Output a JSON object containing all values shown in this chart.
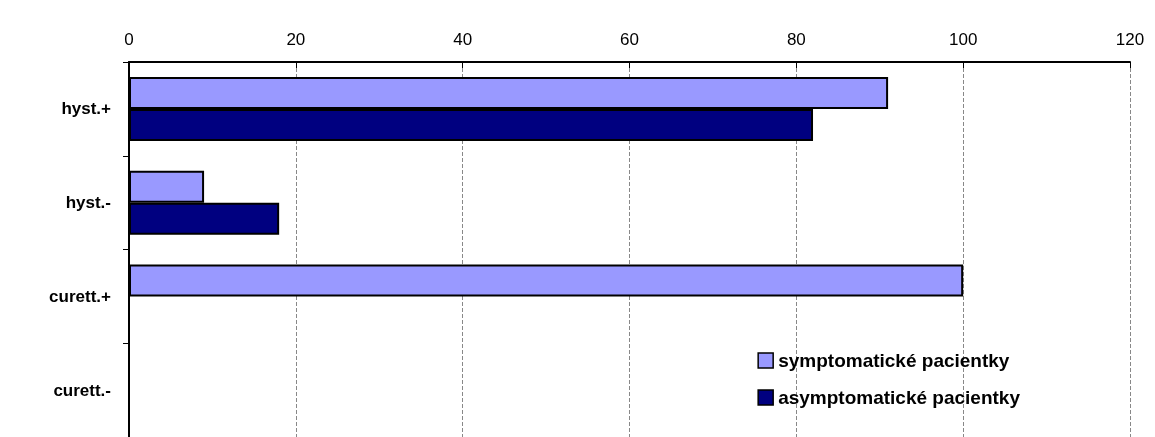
{
  "chart_data": {
    "type": "bar",
    "orientation": "horizontal",
    "categories": [
      "hyst.+",
      "hyst.-",
      "curett.+",
      "curett.-"
    ],
    "series": [
      {
        "name": "symptomatické pacientky",
        "color": "#9999ff",
        "values": [
          91,
          9,
          100,
          0
        ]
      },
      {
        "name": "asymptomatické pacientky",
        "color": "#000080",
        "values": [
          82,
          18,
          0,
          0
        ]
      }
    ],
    "xlim": [
      0,
      120
    ],
    "xticks": [
      0,
      20,
      40,
      60,
      80,
      100,
      120
    ],
    "grid": "x",
    "legend": "bottom right"
  }
}
